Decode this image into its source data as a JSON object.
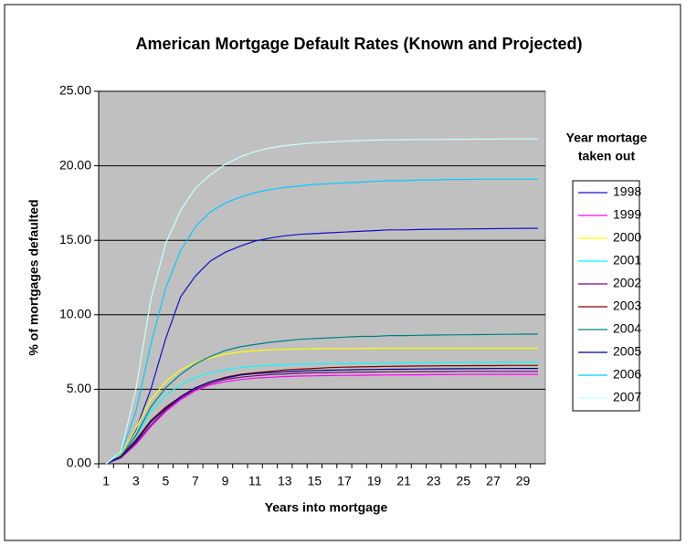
{
  "chart_data": {
    "type": "line",
    "title": "American Mortgage Default Rates (Known and Projected)",
    "x_label": "Years into mortgage",
    "y_label": "% of mortgages defaulted",
    "legend_title": [
      "Year mortage",
      "taken out"
    ],
    "legend_position": "right",
    "grid": true,
    "plot_background": "#c0c0c0",
    "categories": [
      1,
      null,
      3,
      null,
      5,
      null,
      7,
      null,
      9,
      null,
      11,
      null,
      13,
      null,
      15,
      null,
      17,
      null,
      19,
      null,
      21,
      null,
      23,
      null,
      25,
      null,
      27,
      null,
      29,
      null
    ],
    "ylim": [
      0,
      25
    ],
    "yticks": [
      {
        "value": 0,
        "label": "0.00"
      },
      {
        "value": 5,
        "label": "5.00"
      },
      {
        "value": 10,
        "label": "10.00"
      },
      {
        "value": 15,
        "label": "15.00"
      },
      {
        "value": 20,
        "label": "20.00"
      },
      {
        "value": 25,
        "label": "25.00"
      }
    ],
    "series": [
      {
        "name": "1998",
        "color": "#1010c8",
        "values": [
          0,
          0.6,
          2.3,
          5,
          8.4,
          11.2,
          12.6,
          13.6,
          14.2,
          14.6,
          14.95,
          15.15,
          15.3,
          15.4,
          15.45,
          15.5,
          15.55,
          15.6,
          15.65,
          15.7,
          15.7,
          15.72,
          15.74,
          15.75,
          15.76,
          15.77,
          15.78,
          15.79,
          15.8,
          15.8
        ]
      },
      {
        "name": "1999",
        "color": "#ff00ff",
        "values": [
          0,
          0.4,
          1.3,
          2.5,
          3.5,
          4.3,
          4.9,
          5.3,
          5.5,
          5.65,
          5.75,
          5.8,
          5.85,
          5.88,
          5.9,
          5.92,
          5.93,
          5.94,
          5.95,
          5.96,
          5.97,
          5.97,
          5.98,
          5.98,
          5.99,
          5.99,
          6,
          6,
          6,
          6
        ]
      },
      {
        "name": "2000",
        "color": "#ffff00",
        "values": [
          0,
          0.6,
          2.4,
          4.3,
          5.5,
          6.3,
          6.8,
          7.1,
          7.35,
          7.5,
          7.6,
          7.65,
          7.68,
          7.7,
          7.72,
          7.73,
          7.74,
          7.74,
          7.75,
          7.75,
          7.75,
          7.75,
          7.75,
          7.75,
          7.75,
          7.75,
          7.75,
          7.75,
          7.75,
          7.75
        ]
      },
      {
        "name": "2001",
        "color": "#00ffff",
        "values": [
          0,
          0.5,
          1.8,
          3.5,
          4.6,
          5.3,
          5.8,
          6.1,
          6.3,
          6.45,
          6.55,
          6.6,
          6.65,
          6.68,
          6.7,
          6.72,
          6.73,
          6.74,
          6.75,
          6.76,
          6.77,
          6.78,
          6.78,
          6.79,
          6.79,
          6.8,
          6.8,
          6.8,
          6.8,
          6.8
        ]
      },
      {
        "name": "2002",
        "color": "#800080",
        "values": [
          0,
          0.4,
          1.4,
          2.6,
          3.6,
          4.4,
          5,
          5.4,
          5.65,
          5.8,
          5.9,
          5.98,
          6.03,
          6.07,
          6.1,
          6.12,
          6.14,
          6.15,
          6.16,
          6.17,
          6.18,
          6.18,
          6.19,
          6.19,
          6.2,
          6.2,
          6.2,
          6.2,
          6.2,
          6.2
        ]
      },
      {
        "name": "2003",
        "color": "#800000",
        "values": [
          0,
          0.5,
          1.6,
          2.9,
          3.8,
          4.5,
          5.1,
          5.5,
          5.8,
          6,
          6.1,
          6.2,
          6.3,
          6.35,
          6.4,
          6.45,
          6.48,
          6.5,
          6.52,
          6.54,
          6.55,
          6.56,
          6.57,
          6.58,
          6.58,
          6.59,
          6.59,
          6.6,
          6.6,
          6.6
        ]
      },
      {
        "name": "2004",
        "color": "#008080",
        "values": [
          0,
          0.5,
          1.9,
          3.8,
          5.1,
          6,
          6.7,
          7.2,
          7.6,
          7.85,
          8,
          8.15,
          8.25,
          8.35,
          8.4,
          8.45,
          8.5,
          8.55,
          8.55,
          8.6,
          8.6,
          8.62,
          8.64,
          8.65,
          8.66,
          8.67,
          8.68,
          8.69,
          8.7,
          8.7
        ]
      },
      {
        "name": "2005",
        "color": "#000080",
        "values": [
          0,
          0.5,
          1.5,
          2.8,
          3.7,
          4.5,
          5.1,
          5.5,
          5.75,
          5.95,
          6.05,
          6.12,
          6.18,
          6.22,
          6.26,
          6.28,
          6.3,
          6.32,
          6.33,
          6.34,
          6.35,
          6.36,
          6.37,
          6.37,
          6.38,
          6.38,
          6.39,
          6.39,
          6.4,
          6.4
        ]
      },
      {
        "name": "2006",
        "color": "#00ccff",
        "values": [
          0,
          0.7,
          3.5,
          8,
          11.8,
          14.3,
          15.9,
          16.9,
          17.5,
          17.9,
          18.2,
          18.4,
          18.55,
          18.65,
          18.75,
          18.8,
          18.85,
          18.9,
          18.95,
          19,
          19,
          19.05,
          19.05,
          19.08,
          19.08,
          19.1,
          19.1,
          19.1,
          19.1,
          19.1
        ]
      },
      {
        "name": "2007",
        "color": "#ccffff",
        "values": [
          0,
          0.8,
          5,
          11,
          14.8,
          17,
          18.5,
          19.4,
          20.1,
          20.6,
          20.95,
          21.2,
          21.35,
          21.45,
          21.55,
          21.6,
          21.65,
          21.7,
          21.72,
          21.74,
          21.75,
          21.76,
          21.77,
          21.78,
          21.78,
          21.79,
          21.79,
          21.8,
          21.8,
          21.8
        ]
      }
    ]
  }
}
